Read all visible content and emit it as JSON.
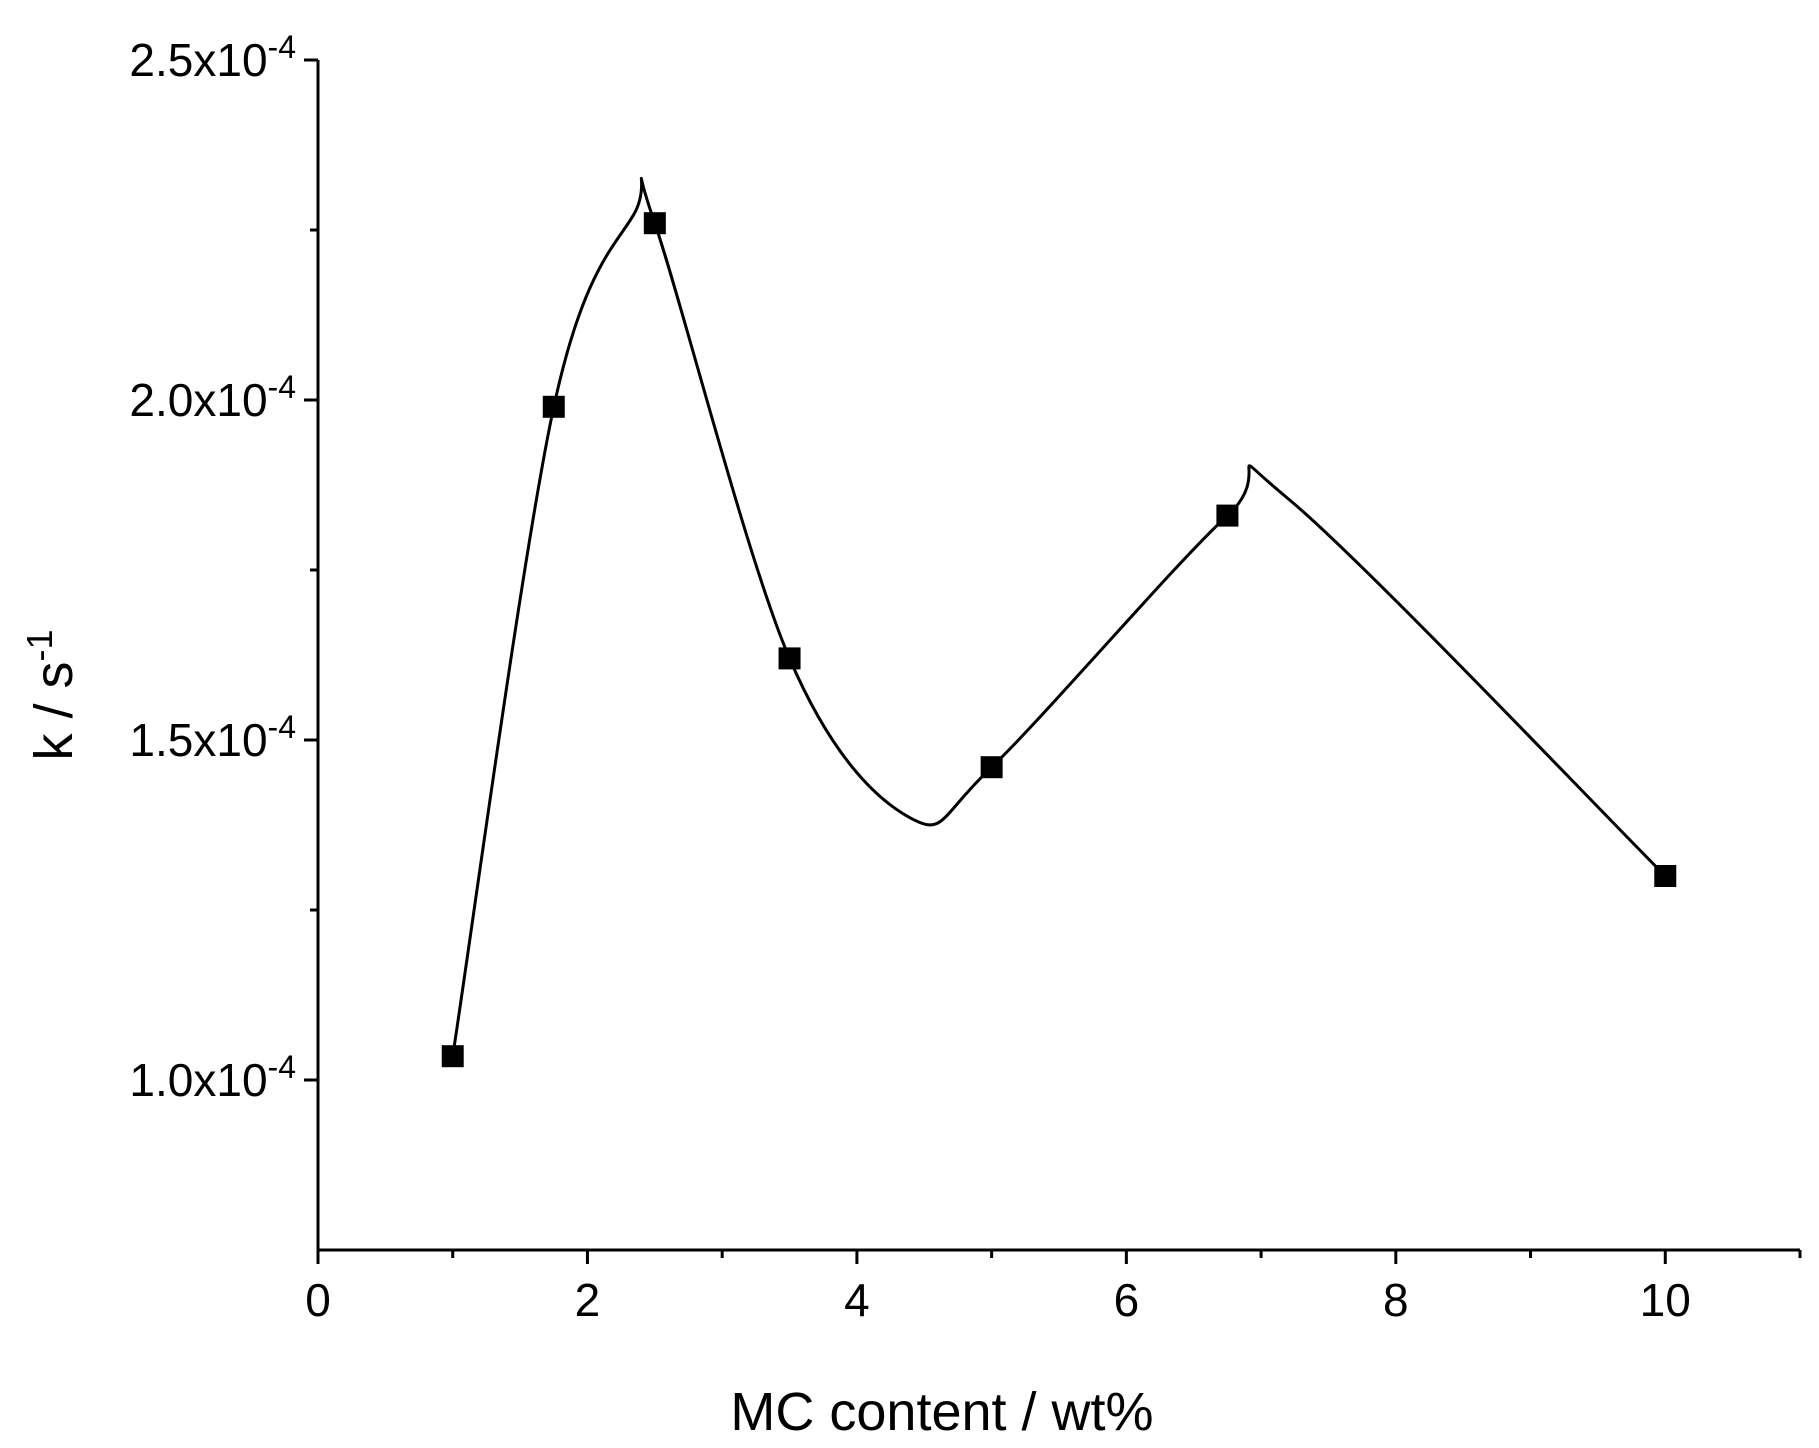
{
  "chart_data": {
    "type": "scatter",
    "xlabel": "MC content / wt%",
    "ylabel_base": "k / s",
    "ylabel_sup": "-1",
    "xlim": [
      0,
      11
    ],
    "ylim": [
      7.5e-05,
      0.00025
    ],
    "x_ticks": [
      {
        "value": 0,
        "label": "0"
      },
      {
        "value": 2,
        "label": "2"
      },
      {
        "value": 4,
        "label": "4"
      },
      {
        "value": 6,
        "label": "6"
      },
      {
        "value": 8,
        "label": "8"
      },
      {
        "value": 10,
        "label": "10"
      }
    ],
    "x_minor_ticks": [
      1,
      3,
      5,
      7,
      9,
      11
    ],
    "y_ticks": [
      {
        "value": 0.0001,
        "base": "1.0x10",
        "exp": "-4"
      },
      {
        "value": 0.00015,
        "base": "1.5x10",
        "exp": "-4"
      },
      {
        "value": 0.0002,
        "base": "2.0x10",
        "exp": "-4"
      },
      {
        "value": 0.00025,
        "base": "2.5x10",
        "exp": "-4"
      }
    ],
    "y_minor_ticks": [
      0.000125,
      0.000175,
      0.000225
    ],
    "grid": false,
    "legend": "none",
    "series": [
      {
        "marker": "square",
        "color": "#000000",
        "points": [
          {
            "x": 1.0,
            "y": 0.0001035
          },
          {
            "x": 1.75,
            "y": 0.000199
          },
          {
            "x": 2.5,
            "y": 0.000226
          },
          {
            "x": 3.5,
            "y": 0.000162
          },
          {
            "x": 5.0,
            "y": 0.000146
          },
          {
            "x": 6.75,
            "y": 0.000183
          },
          {
            "x": 10.0,
            "y": 0.00013
          }
        ]
      }
    ],
    "fit_curve": {
      "type": "smooth spline",
      "color": "#000000",
      "points": [
        {
          "x": 1.0,
          "y": 0.0001035
        },
        {
          "x": 1.75,
          "y": 0.000199
        },
        {
          "x": 2.35,
          "y": 0.0002275
        },
        {
          "x": 2.5,
          "y": 0.000226
        },
        {
          "x": 3.5,
          "y": 0.000162
        },
        {
          "x": 4.4,
          "y": 0.0001385
        },
        {
          "x": 5.0,
          "y": 0.000146
        },
        {
          "x": 6.75,
          "y": 0.000183
        },
        {
          "x": 7.2,
          "y": 0.0001855
        },
        {
          "x": 10.0,
          "y": 0.00013
        }
      ]
    }
  }
}
